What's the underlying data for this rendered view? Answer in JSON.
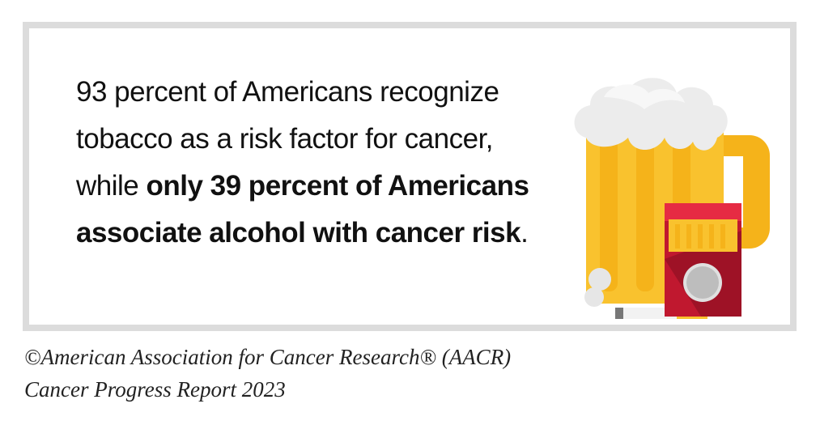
{
  "statement": {
    "text": "93 percent of Americans recognize tobacco as a risk factor for cancer, while ",
    "emphasis": "only 39 percent of Americans associate alcohol with cancer risk",
    "end": "."
  },
  "credit": {
    "line1": "©American Association for Cancer Research® (AACR)",
    "line2": "Cancer Progress Report 2023"
  }
}
